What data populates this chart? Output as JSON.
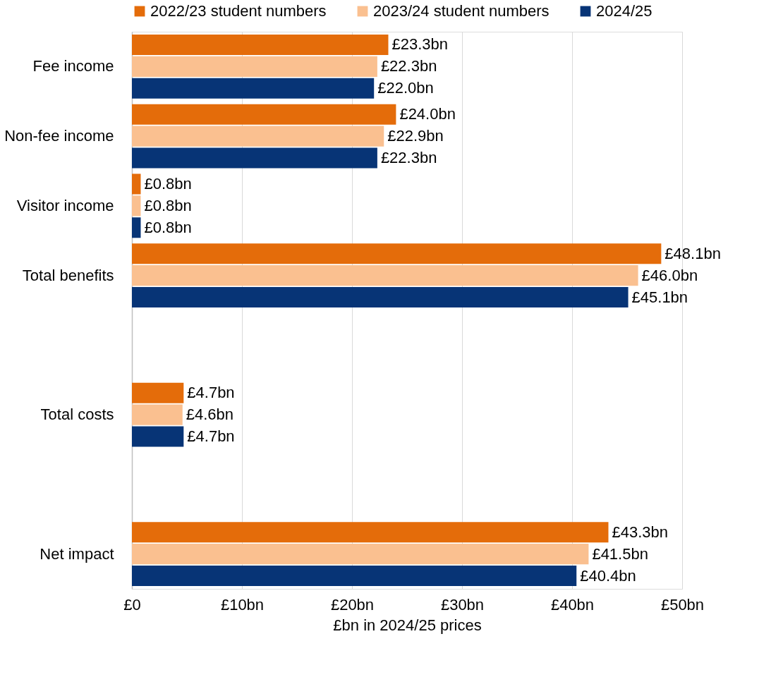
{
  "chart_data": {
    "type": "bar",
    "orientation": "horizontal",
    "xlabel": "£bn in 2024/25 prices",
    "categories": [
      "Fee income",
      "Non-fee income",
      "Visitor income",
      "Total benefits",
      null,
      "Total costs",
      null,
      "Net impact"
    ],
    "series": [
      {
        "name": "2022/23 student numbers",
        "color": "#e46c0a",
        "values": [
          23.3,
          24.0,
          0.8,
          48.1,
          null,
          4.7,
          null,
          43.3
        ],
        "value_labels": [
          "£23.3bn",
          "£24.0bn",
          "£0.8bn",
          "£48.1bn",
          null,
          "£4.7bn",
          null,
          "£43.3bn"
        ]
      },
      {
        "name": "2023/24 student numbers",
        "color": "#fac090",
        "values": [
          22.3,
          22.9,
          0.8,
          46.0,
          null,
          4.6,
          null,
          41.5
        ],
        "value_labels": [
          "£22.3bn",
          "£22.9bn",
          "£0.8bn",
          "£46.0bn",
          null,
          "£4.6bn",
          null,
          "£41.5bn"
        ]
      },
      {
        "name": "2024/25",
        "color": "#073476",
        "values": [
          22.0,
          22.3,
          0.8,
          45.1,
          null,
          4.7,
          null,
          40.4
        ],
        "value_labels": [
          "£22.0bn",
          "£22.3bn",
          "£0.8bn",
          "£45.1bn",
          null,
          "£4.7bn",
          null,
          "£40.4bn"
        ]
      }
    ],
    "xlim": [
      0,
      50
    ],
    "xticks": [
      {
        "value": 0,
        "label": "£0"
      },
      {
        "value": 10,
        "label": "£10bn"
      },
      {
        "value": 20,
        "label": "£20bn"
      },
      {
        "value": 30,
        "label": "£30bn"
      },
      {
        "value": 40,
        "label": "£40bn"
      },
      {
        "value": 50,
        "label": "£50bn"
      }
    ],
    "grid": "x",
    "legend": "top"
  }
}
